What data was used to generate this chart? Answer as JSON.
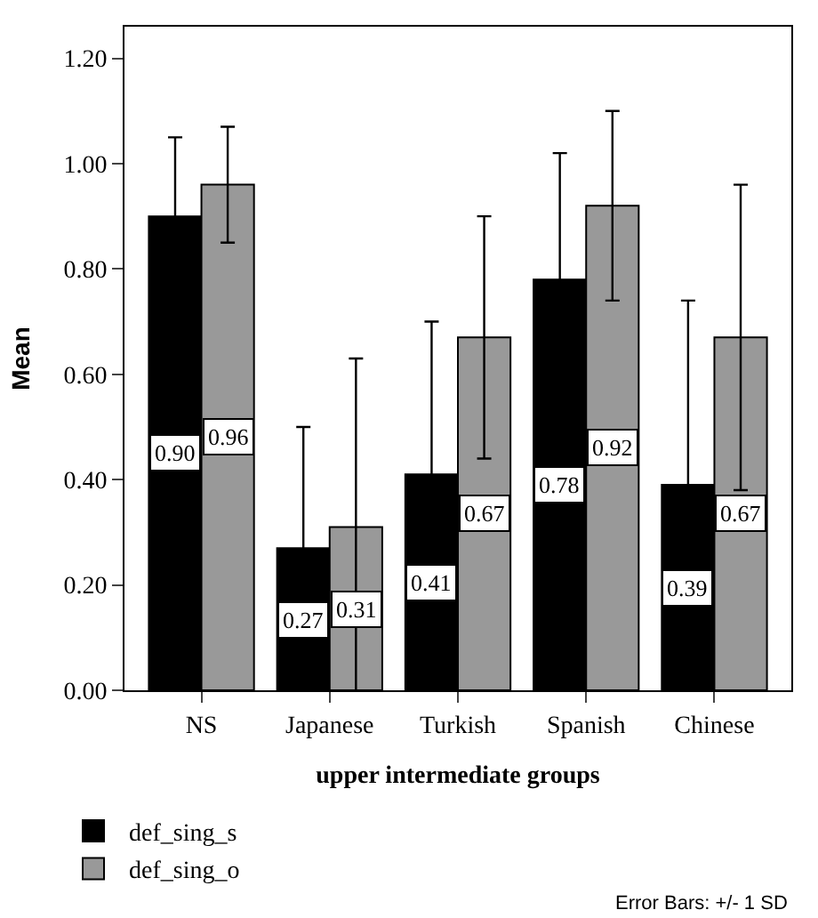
{
  "chart_data": {
    "type": "bar",
    "xlabel": "upper intermediate groups",
    "ylabel": "Mean",
    "categories": [
      "NS",
      "Japanese",
      "Turkish",
      "Spanish",
      "Chinese"
    ],
    "series": [
      {
        "name": "def_sing_s",
        "color": "#000000",
        "values": [
          0.9,
          0.27,
          0.41,
          0.78,
          0.39
        ],
        "value_labels": [
          "0.90",
          "0.27",
          "0.41",
          "0.78",
          "0.39"
        ],
        "errors": [
          0.15,
          0.23,
          0.29,
          0.24,
          0.35
        ]
      },
      {
        "name": "def_sing_o",
        "color": "#999999",
        "values": [
          0.96,
          0.31,
          0.67,
          0.92,
          0.67
        ],
        "value_labels": [
          "0.96",
          "0.31",
          "0.67",
          "0.92",
          "0.67"
        ],
        "errors": [
          0.11,
          0.32,
          0.23,
          0.18,
          0.29
        ]
      }
    ],
    "ylim": [
      0,
      1.26
    ],
    "yticks": [
      {
        "value": 0,
        "label": "0.00"
      },
      {
        "value": 0.2,
        "label": "0.20"
      },
      {
        "value": 0.4,
        "label": "0.40"
      },
      {
        "value": 0.6,
        "label": "0.60"
      },
      {
        "value": 0.8,
        "label": "0.80"
      },
      {
        "value": 1.0,
        "label": "1.00"
      },
      {
        "value": 1.2,
        "label": "1.20"
      }
    ],
    "legend": "bottom left",
    "annotations": [
      "Error Bars: +/- 1 SD"
    ]
  }
}
